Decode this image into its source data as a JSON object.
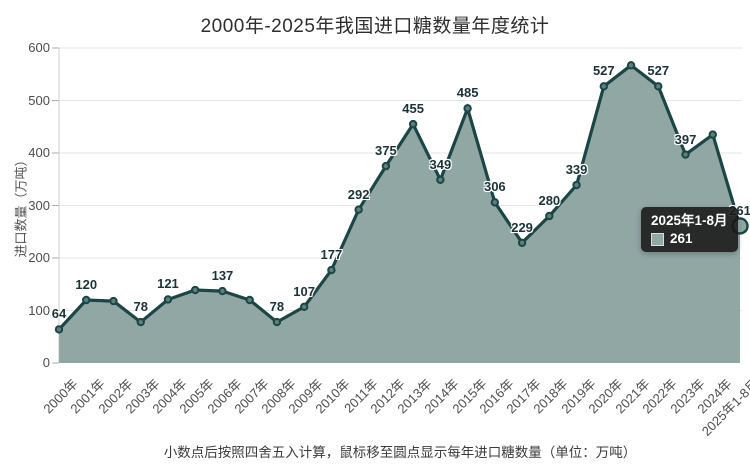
{
  "title": "2000年-2025年我国进口糖数量年度统计",
  "footer": "小数点后按照四舍五入计算，鼠标移至圆点显示每年进口糖数量（单位：万吨）",
  "tooltip": {
    "title": "2025年1-8月",
    "value": "261"
  },
  "colors": {
    "line": "#1c4546",
    "area": "#90a7a4",
    "marker_fill": "#5d807e",
    "grid": "#e4e6e5",
    "axis_line": "#cccccc",
    "axis_tick": "#aaaaaa",
    "axis_text": "#4d4d4d",
    "data_label": "#1a333a",
    "title_text": "#2e2e2e",
    "tooltip_bg": "rgba(23,23,23,0.87)",
    "tooltip_text": "#ffffff",
    "footer_text": "#3b3b3b"
  },
  "chart_data": {
    "type": "area",
    "title": "2000年-2025年我国进口糖数量年度统计",
    "categories": [
      "2000年",
      "2001年",
      "2002年",
      "2003年",
      "2004年",
      "2005年",
      "2006年",
      "2007年",
      "2008年",
      "2009年",
      "2010年",
      "2011年",
      "2012年",
      "2013年",
      "2014年",
      "2015年",
      "2016年",
      "2017年",
      "2018年",
      "2019年",
      "2020年",
      "2021年",
      "2022年",
      "2023年",
      "2024年",
      "2025年1-8月"
    ],
    "values": [
      64,
      120,
      118,
      78,
      121,
      139,
      137,
      120,
      78,
      107,
      177,
      292,
      375,
      455,
      349,
      485,
      306,
      229,
      280,
      339,
      527,
      567,
      527,
      397,
      435,
      261
    ],
    "point_labels_visible": [
      true,
      true,
      false,
      true,
      true,
      false,
      true,
      false,
      true,
      true,
      true,
      true,
      true,
      true,
      true,
      true,
      true,
      true,
      true,
      true,
      true,
      false,
      true,
      true,
      false,
      true
    ],
    "xlabel": "",
    "ylabel": "进口数量（万吨）",
    "ylim": [
      0,
      600
    ],
    "yticks": [
      0,
      100,
      200,
      300,
      400,
      500,
      600
    ],
    "grid": true,
    "legend_position": "none",
    "hovered_point_index": 25
  }
}
